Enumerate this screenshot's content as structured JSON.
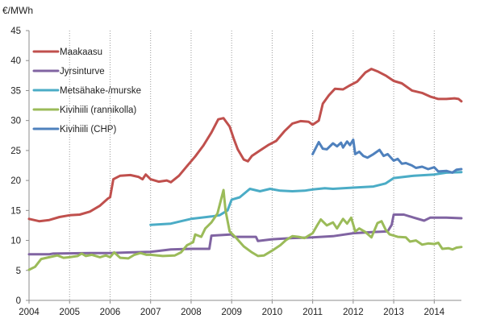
{
  "chart_data": {
    "type": "line",
    "title": "",
    "ylabel": "€/MWh",
    "xlabel": "",
    "ylim": [
      0,
      45
    ],
    "xlim": [
      2004,
      2014.67
    ],
    "yticks": [
      0,
      5,
      10,
      15,
      20,
      25,
      30,
      35,
      40,
      45
    ],
    "xticks": [
      2004,
      2005,
      2006,
      2007,
      2008,
      2009,
      2010,
      2011,
      2012,
      2013,
      2014
    ],
    "xtick_labels": [
      "2004",
      "2005",
      "2006",
      "2007",
      "2008",
      "2009",
      "2010",
      "2011",
      "2012",
      "2013",
      "2014"
    ],
    "grid": "vertical dotted lines at years",
    "legend_position": "top-left",
    "series": [
      {
        "name": "Maakaasu",
        "color": "#c0504d",
        "points": [
          [
            2004.0,
            13.6
          ],
          [
            2004.25,
            13.2
          ],
          [
            2004.5,
            13.4
          ],
          [
            2004.75,
            13.9
          ],
          [
            2005.0,
            14.2
          ],
          [
            2005.25,
            14.3
          ],
          [
            2005.5,
            14.8
          ],
          [
            2005.75,
            15.8
          ],
          [
            2005.95,
            17.0
          ],
          [
            2006.0,
            17.2
          ],
          [
            2006.08,
            20.2
          ],
          [
            2006.25,
            20.8
          ],
          [
            2006.5,
            20.9
          ],
          [
            2006.7,
            20.6
          ],
          [
            2006.8,
            20.2
          ],
          [
            2006.88,
            21.0
          ],
          [
            2007.0,
            20.2
          ],
          [
            2007.2,
            19.8
          ],
          [
            2007.4,
            20.0
          ],
          [
            2007.5,
            19.7
          ],
          [
            2007.7,
            20.8
          ],
          [
            2007.9,
            22.4
          ],
          [
            2008.1,
            24.0
          ],
          [
            2008.3,
            25.8
          ],
          [
            2008.5,
            28.0
          ],
          [
            2008.67,
            30.2
          ],
          [
            2008.8,
            30.4
          ],
          [
            2008.95,
            29.0
          ],
          [
            2009.05,
            27.0
          ],
          [
            2009.15,
            25.2
          ],
          [
            2009.3,
            23.5
          ],
          [
            2009.4,
            23.2
          ],
          [
            2009.5,
            24.1
          ],
          [
            2009.7,
            25.0
          ],
          [
            2009.9,
            25.9
          ],
          [
            2010.1,
            26.6
          ],
          [
            2010.3,
            28.2
          ],
          [
            2010.5,
            29.5
          ],
          [
            2010.7,
            29.9
          ],
          [
            2010.9,
            29.8
          ],
          [
            2011.0,
            29.3
          ],
          [
            2011.15,
            30.0
          ],
          [
            2011.25,
            32.8
          ],
          [
            2011.4,
            34.2
          ],
          [
            2011.55,
            35.3
          ],
          [
            2011.75,
            35.2
          ],
          [
            2011.9,
            35.8
          ],
          [
            2012.1,
            36.5
          ],
          [
            2012.3,
            38.0
          ],
          [
            2012.45,
            38.6
          ],
          [
            2012.6,
            38.2
          ],
          [
            2012.8,
            37.5
          ],
          [
            2013.0,
            36.6
          ],
          [
            2013.2,
            36.2
          ],
          [
            2013.45,
            35.0
          ],
          [
            2013.7,
            34.6
          ],
          [
            2013.9,
            34.0
          ],
          [
            2014.1,
            33.6
          ],
          [
            2014.3,
            33.6
          ],
          [
            2014.5,
            33.7
          ],
          [
            2014.6,
            33.6
          ],
          [
            2014.67,
            33.2
          ]
        ]
      },
      {
        "name": "Jyrsinturve",
        "color": "#8064a2",
        "points": [
          [
            2004.0,
            7.7
          ],
          [
            2004.5,
            7.7
          ],
          [
            2004.6,
            7.8
          ],
          [
            2005.5,
            7.9
          ],
          [
            2006.0,
            7.9
          ],
          [
            2006.5,
            8.0
          ],
          [
            2007.0,
            8.1
          ],
          [
            2007.5,
            8.5
          ],
          [
            2008.0,
            8.6
          ],
          [
            2008.45,
            8.6
          ],
          [
            2008.5,
            10.8
          ],
          [
            2009.0,
            11.0
          ],
          [
            2009.05,
            10.6
          ],
          [
            2009.6,
            10.6
          ],
          [
            2009.65,
            9.9
          ],
          [
            2010.0,
            10.2
          ],
          [
            2010.5,
            10.4
          ],
          [
            2011.0,
            10.5
          ],
          [
            2011.5,
            10.7
          ],
          [
            2012.0,
            11.2
          ],
          [
            2012.5,
            11.4
          ],
          [
            2012.85,
            11.5
          ],
          [
            2012.95,
            12.6
          ],
          [
            2013.0,
            14.3
          ],
          [
            2013.25,
            14.3
          ],
          [
            2013.5,
            13.8
          ],
          [
            2013.75,
            13.3
          ],
          [
            2013.9,
            13.8
          ],
          [
            2014.3,
            13.8
          ],
          [
            2014.67,
            13.7
          ]
        ]
      },
      {
        "name": "Metsähake-/murske",
        "color": "#4bacc6",
        "points": [
          [
            2007.0,
            12.6
          ],
          [
            2007.5,
            12.8
          ],
          [
            2007.75,
            13.2
          ],
          [
            2008.0,
            13.6
          ],
          [
            2008.5,
            14.0
          ],
          [
            2008.7,
            14.2
          ],
          [
            2008.9,
            15.0
          ],
          [
            2009.0,
            16.8
          ],
          [
            2009.2,
            17.2
          ],
          [
            2009.45,
            18.6
          ],
          [
            2009.7,
            18.2
          ],
          [
            2009.95,
            18.6
          ],
          [
            2010.2,
            18.3
          ],
          [
            2010.5,
            18.2
          ],
          [
            2010.8,
            18.3
          ],
          [
            2011.0,
            18.5
          ],
          [
            2011.3,
            18.7
          ],
          [
            2011.5,
            18.6
          ],
          [
            2011.75,
            18.7
          ],
          [
            2012.0,
            18.8
          ],
          [
            2012.5,
            19.0
          ],
          [
            2012.8,
            19.5
          ],
          [
            2013.0,
            20.4
          ],
          [
            2013.5,
            20.8
          ],
          [
            2014.0,
            21.0
          ],
          [
            2014.3,
            21.3
          ],
          [
            2014.67,
            21.4
          ]
        ]
      },
      {
        "name": "Kivihiili (rannikolla)",
        "color": "#9bbb59",
        "points": [
          [
            2004.0,
            5.1
          ],
          [
            2004.15,
            5.6
          ],
          [
            2004.3,
            6.9
          ],
          [
            2004.5,
            7.2
          ],
          [
            2004.7,
            7.5
          ],
          [
            2004.85,
            7.1
          ],
          [
            2005.0,
            7.2
          ],
          [
            2005.2,
            7.4
          ],
          [
            2005.3,
            7.8
          ],
          [
            2005.4,
            7.4
          ],
          [
            2005.55,
            7.6
          ],
          [
            2005.75,
            7.2
          ],
          [
            2005.9,
            7.5
          ],
          [
            2006.0,
            7.2
          ],
          [
            2006.1,
            8.0
          ],
          [
            2006.25,
            7.1
          ],
          [
            2006.45,
            7.0
          ],
          [
            2006.6,
            7.6
          ],
          [
            2006.75,
            7.9
          ],
          [
            2006.9,
            7.6
          ],
          [
            2007.0,
            7.6
          ],
          [
            2007.3,
            7.4
          ],
          [
            2007.6,
            7.5
          ],
          [
            2007.75,
            8.0
          ],
          [
            2007.9,
            9.2
          ],
          [
            2008.05,
            9.7
          ],
          [
            2008.1,
            11.0
          ],
          [
            2008.25,
            10.6
          ],
          [
            2008.35,
            12.0
          ],
          [
            2008.5,
            13.0
          ],
          [
            2008.65,
            14.5
          ],
          [
            2008.8,
            18.4
          ],
          [
            2008.85,
            15.0
          ],
          [
            2008.95,
            11.5
          ],
          [
            2009.1,
            10.5
          ],
          [
            2009.3,
            9.0
          ],
          [
            2009.5,
            8.0
          ],
          [
            2009.65,
            7.4
          ],
          [
            2009.8,
            7.5
          ],
          [
            2010.0,
            8.3
          ],
          [
            2010.2,
            9.2
          ],
          [
            2010.35,
            10.1
          ],
          [
            2010.5,
            10.7
          ],
          [
            2010.65,
            10.6
          ],
          [
            2010.8,
            10.4
          ],
          [
            2011.0,
            11.2
          ],
          [
            2011.1,
            12.4
          ],
          [
            2011.2,
            13.5
          ],
          [
            2011.35,
            12.5
          ],
          [
            2011.5,
            13.0
          ],
          [
            2011.6,
            12.0
          ],
          [
            2011.75,
            13.6
          ],
          [
            2011.85,
            12.8
          ],
          [
            2011.95,
            13.8
          ],
          [
            2012.05,
            11.5
          ],
          [
            2012.15,
            12.0
          ],
          [
            2012.3,
            11.4
          ],
          [
            2012.45,
            10.5
          ],
          [
            2012.6,
            12.9
          ],
          [
            2012.7,
            13.2
          ],
          [
            2012.8,
            11.8
          ],
          [
            2012.9,
            11.0
          ],
          [
            2013.1,
            10.6
          ],
          [
            2013.3,
            10.5
          ],
          [
            2013.4,
            9.8
          ],
          [
            2013.55,
            10.0
          ],
          [
            2013.7,
            9.3
          ],
          [
            2013.85,
            9.5
          ],
          [
            2014.0,
            9.4
          ],
          [
            2014.1,
            9.6
          ],
          [
            2014.2,
            8.6
          ],
          [
            2014.35,
            8.7
          ],
          [
            2014.45,
            8.5
          ],
          [
            2014.55,
            8.8
          ],
          [
            2014.67,
            8.9
          ]
        ]
      },
      {
        "name": "Kivihiili (CHP)",
        "color": "#4f81bd",
        "points": [
          [
            2011.0,
            24.4
          ],
          [
            2011.15,
            26.4
          ],
          [
            2011.25,
            25.3
          ],
          [
            2011.35,
            25.2
          ],
          [
            2011.5,
            26.2
          ],
          [
            2011.6,
            25.7
          ],
          [
            2011.7,
            26.3
          ],
          [
            2011.75,
            25.5
          ],
          [
            2011.85,
            26.5
          ],
          [
            2011.92,
            25.9
          ],
          [
            2012.0,
            26.8
          ],
          [
            2012.05,
            24.4
          ],
          [
            2012.15,
            24.8
          ],
          [
            2012.25,
            24.1
          ],
          [
            2012.35,
            23.8
          ],
          [
            2012.5,
            24.4
          ],
          [
            2012.65,
            25.1
          ],
          [
            2012.75,
            24.1
          ],
          [
            2012.85,
            24.4
          ],
          [
            2013.0,
            23.3
          ],
          [
            2013.1,
            23.6
          ],
          [
            2013.2,
            22.8
          ],
          [
            2013.3,
            22.9
          ],
          [
            2013.45,
            22.5
          ],
          [
            2013.55,
            22.1
          ],
          [
            2013.7,
            22.3
          ],
          [
            2013.85,
            21.9
          ],
          [
            2014.0,
            22.2
          ],
          [
            2014.1,
            21.5
          ],
          [
            2014.3,
            21.6
          ],
          [
            2014.45,
            21.3
          ],
          [
            2014.55,
            21.8
          ],
          [
            2014.67,
            21.9
          ]
        ]
      }
    ]
  }
}
